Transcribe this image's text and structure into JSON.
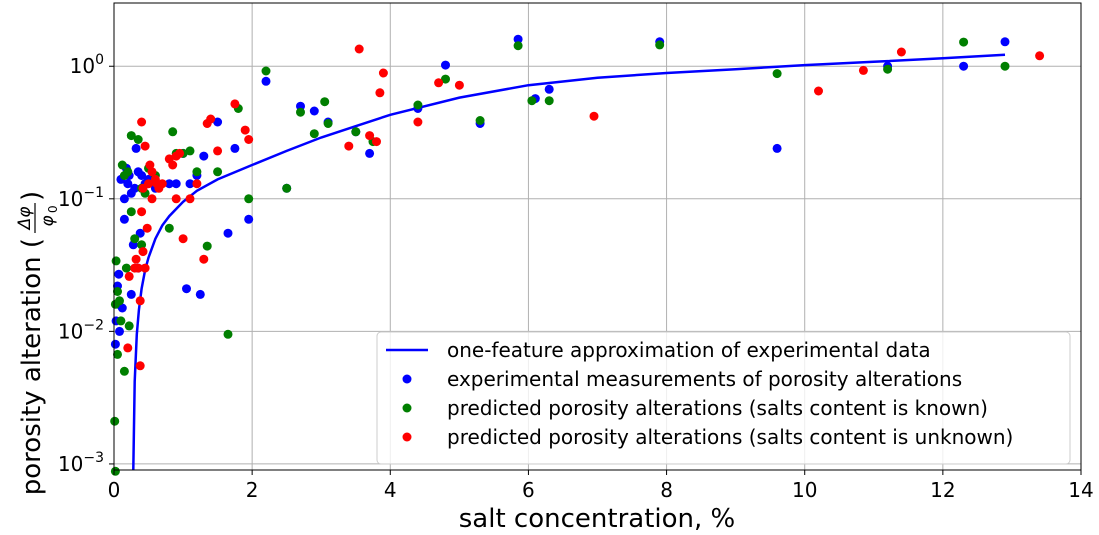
{
  "chart_data": {
    "type": "scatter",
    "xlabel": "salt concentration, %",
    "ylabel": "porosity alteration (",
    "ylabel_fraction": {
      "numerator": "Δφ",
      "denominator": "φ",
      "denominator_subscript": "0",
      "close": ")"
    },
    "xlim": [
      0,
      14
    ],
    "ylim": [
      0.0009,
      3.0
    ],
    "y_scale": "log",
    "grid": true,
    "legend_position": "lower-right",
    "x_ticks": [
      0,
      2,
      4,
      6,
      8,
      10,
      12,
      14
    ],
    "x_tick_labels": [
      "0",
      "2",
      "4",
      "6",
      "8",
      "10",
      "12",
      "14"
    ],
    "y_ticks": [
      {
        "value": 0.001,
        "base": "10",
        "exp": "−3"
      },
      {
        "value": 0.01,
        "base": "10",
        "exp": "−2"
      },
      {
        "value": 0.1,
        "base": "10",
        "exp": "−1"
      },
      {
        "value": 1,
        "base": "10",
        "exp": "0"
      }
    ],
    "series": [
      {
        "name": "one-feature approximation of experimental data",
        "kind": "line",
        "color": "#0000ff",
        "x": [
          0.28,
          0.3,
          0.33,
          0.36,
          0.4,
          0.45,
          0.5,
          0.6,
          0.7,
          0.8,
          1.0,
          1.2,
          1.5,
          2.0,
          2.5,
          3.0,
          4.0,
          5.0,
          6.0,
          7.0,
          8.0,
          9.0,
          10.0,
          11.0,
          12.0,
          12.9
        ],
        "y": [
          0.0009,
          0.0042,
          0.0095,
          0.0145,
          0.021,
          0.029,
          0.036,
          0.05,
          0.063,
          0.074,
          0.095,
          0.115,
          0.14,
          0.18,
          0.23,
          0.29,
          0.43,
          0.58,
          0.72,
          0.82,
          0.89,
          0.95,
          1.02,
          1.08,
          1.15,
          1.22
        ]
      },
      {
        "name": "experimental measurements of porosity alterations",
        "kind": "scatter",
        "color": "#0000ff",
        "x": [
          0.02,
          0.03,
          0.05,
          0.07,
          0.08,
          0.1,
          0.12,
          0.15,
          0.18,
          0.2,
          0.22,
          0.25,
          0.28,
          0.3,
          0.32,
          0.35,
          0.38,
          0.4,
          0.45,
          0.5,
          0.6,
          0.8,
          0.9,
          1.0,
          1.1,
          1.2,
          1.3,
          1.5,
          1.65,
          1.75,
          1.95,
          2.2,
          2.5,
          2.7,
          2.9,
          3.1,
          3.5,
          3.7,
          4.4,
          4.8,
          5.3,
          5.85,
          6.1,
          6.3,
          7.9,
          9.6,
          11.2,
          12.3,
          12.9,
          1.05,
          1.25,
          0.25,
          0.35,
          0.15,
          0.06
        ],
        "y": [
          0.008,
          0.012,
          0.022,
          0.027,
          0.01,
          0.14,
          0.015,
          0.1,
          0.17,
          0.13,
          0.15,
          0.11,
          0.045,
          0.12,
          0.24,
          0.16,
          0.055,
          0.15,
          0.13,
          0.14,
          0.12,
          0.13,
          0.13,
          0.22,
          0.13,
          0.15,
          0.21,
          0.38,
          0.055,
          0.24,
          0.07,
          0.77,
          0.12,
          0.5,
          0.46,
          0.38,
          0.32,
          0.22,
          0.48,
          1.02,
          0.37,
          1.6,
          0.57,
          0.67,
          1.53,
          0.24,
          1.0,
          1.0,
          1.53,
          0.021,
          0.019,
          0.019,
          0.03,
          0.07,
          0.016
        ]
      },
      {
        "name": "predicted porosity alterations (salts content is known)",
        "kind": "scatter",
        "color": "#007f00",
        "x": [
          0.01,
          0.02,
          0.03,
          0.05,
          0.08,
          0.1,
          0.12,
          0.15,
          0.2,
          0.22,
          0.25,
          0.3,
          0.35,
          0.4,
          0.45,
          0.5,
          0.6,
          0.8,
          0.85,
          0.9,
          1.0,
          1.1,
          1.2,
          1.35,
          1.5,
          1.65,
          1.8,
          1.95,
          2.2,
          2.5,
          2.7,
          2.9,
          3.05,
          3.1,
          3.5,
          3.75,
          4.4,
          4.8,
          5.3,
          5.85,
          6.05,
          6.3,
          7.9,
          9.6,
          11.2,
          12.3,
          12.9,
          0.02,
          0.15,
          0.25,
          0.4,
          0.18,
          0.05
        ],
        "y": [
          0.0021,
          0.00088,
          0.034,
          0.0067,
          0.017,
          0.012,
          0.18,
          0.15,
          0.16,
          0.011,
          0.3,
          0.05,
          0.28,
          0.12,
          0.11,
          0.17,
          0.15,
          0.06,
          0.32,
          0.22,
          0.22,
          0.23,
          0.16,
          0.044,
          0.16,
          0.0095,
          0.48,
          0.1,
          0.92,
          0.12,
          0.45,
          0.31,
          0.54,
          0.37,
          0.32,
          0.27,
          0.51,
          0.8,
          0.39,
          1.43,
          0.55,
          0.55,
          1.45,
          0.88,
          0.95,
          1.52,
          1.0,
          0.016,
          0.005,
          0.08,
          0.045,
          0.03,
          0.02
        ]
      },
      {
        "name": "predicted porosity alterations (salts content is unknown)",
        "kind": "scatter",
        "color": "#ff0000",
        "x": [
          0.2,
          0.22,
          0.3,
          0.32,
          0.35,
          0.38,
          0.4,
          0.42,
          0.45,
          0.5,
          0.52,
          0.55,
          0.6,
          0.62,
          0.65,
          0.7,
          0.8,
          0.85,
          0.9,
          0.95,
          1.0,
          1.1,
          1.2,
          1.3,
          1.35,
          1.4,
          1.5,
          1.75,
          1.9,
          1.95,
          3.4,
          3.55,
          3.7,
          3.8,
          3.85,
          3.9,
          4.4,
          4.7,
          5.0,
          6.95,
          10.2,
          10.85,
          11.4,
          13.4,
          0.38,
          0.42,
          0.4,
          0.55,
          0.48,
          0.45,
          0.9
        ],
        "y": [
          0.0075,
          0.026,
          0.03,
          0.035,
          0.03,
          0.0055,
          0.38,
          0.12,
          0.25,
          0.13,
          0.18,
          0.16,
          0.14,
          0.13,
          0.12,
          0.13,
          0.2,
          0.18,
          0.21,
          0.22,
          0.05,
          0.1,
          0.13,
          0.035,
          0.37,
          0.4,
          0.23,
          0.52,
          0.33,
          0.28,
          0.25,
          1.35,
          0.3,
          0.27,
          0.63,
          0.89,
          0.38,
          0.75,
          0.72,
          0.42,
          0.65,
          0.93,
          1.28,
          1.2,
          0.017,
          0.04,
          0.08,
          0.1,
          0.06,
          0.03,
          0.1
        ]
      }
    ]
  }
}
